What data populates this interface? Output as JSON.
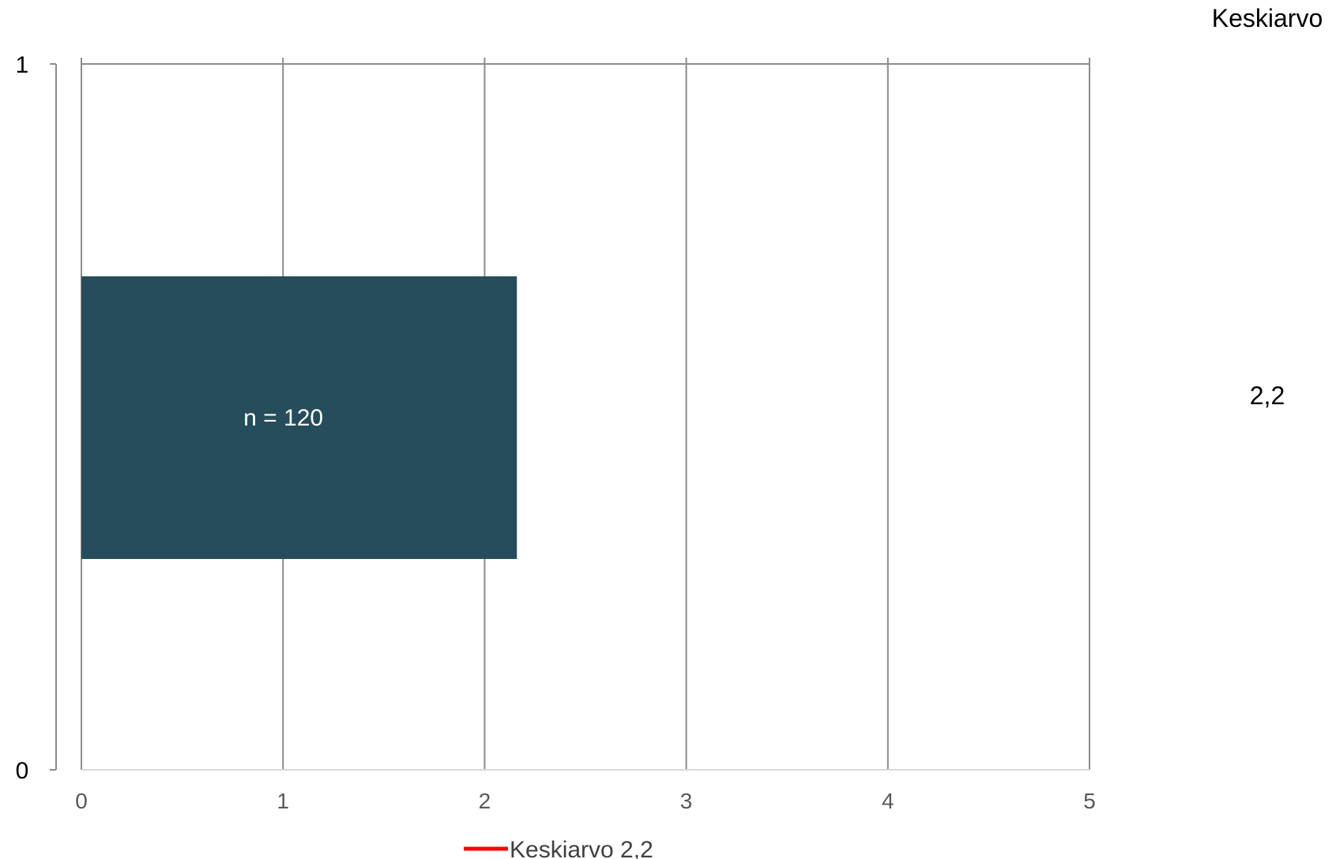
{
  "chart_data": {
    "type": "bar",
    "orientation": "horizontal",
    "x_ticks": [
      "0",
      "1",
      "2",
      "3",
      "4",
      "5"
    ],
    "xlim": [
      0,
      5
    ],
    "y_ticks": [
      "0",
      "1"
    ],
    "ylim": [
      0,
      1
    ],
    "grid": true,
    "bar": {
      "value": 2.16,
      "label": "n = 120",
      "color": "#254d5b"
    },
    "side_panel": {
      "header": "Keskiarvo",
      "value": "2,2"
    },
    "legend": {
      "position": "bottom",
      "label": "Keskiarvo 2,2",
      "color": "#ff0000"
    },
    "colors": {
      "grid": "#8c8c8c",
      "axis": "#d9d9d9"
    }
  }
}
